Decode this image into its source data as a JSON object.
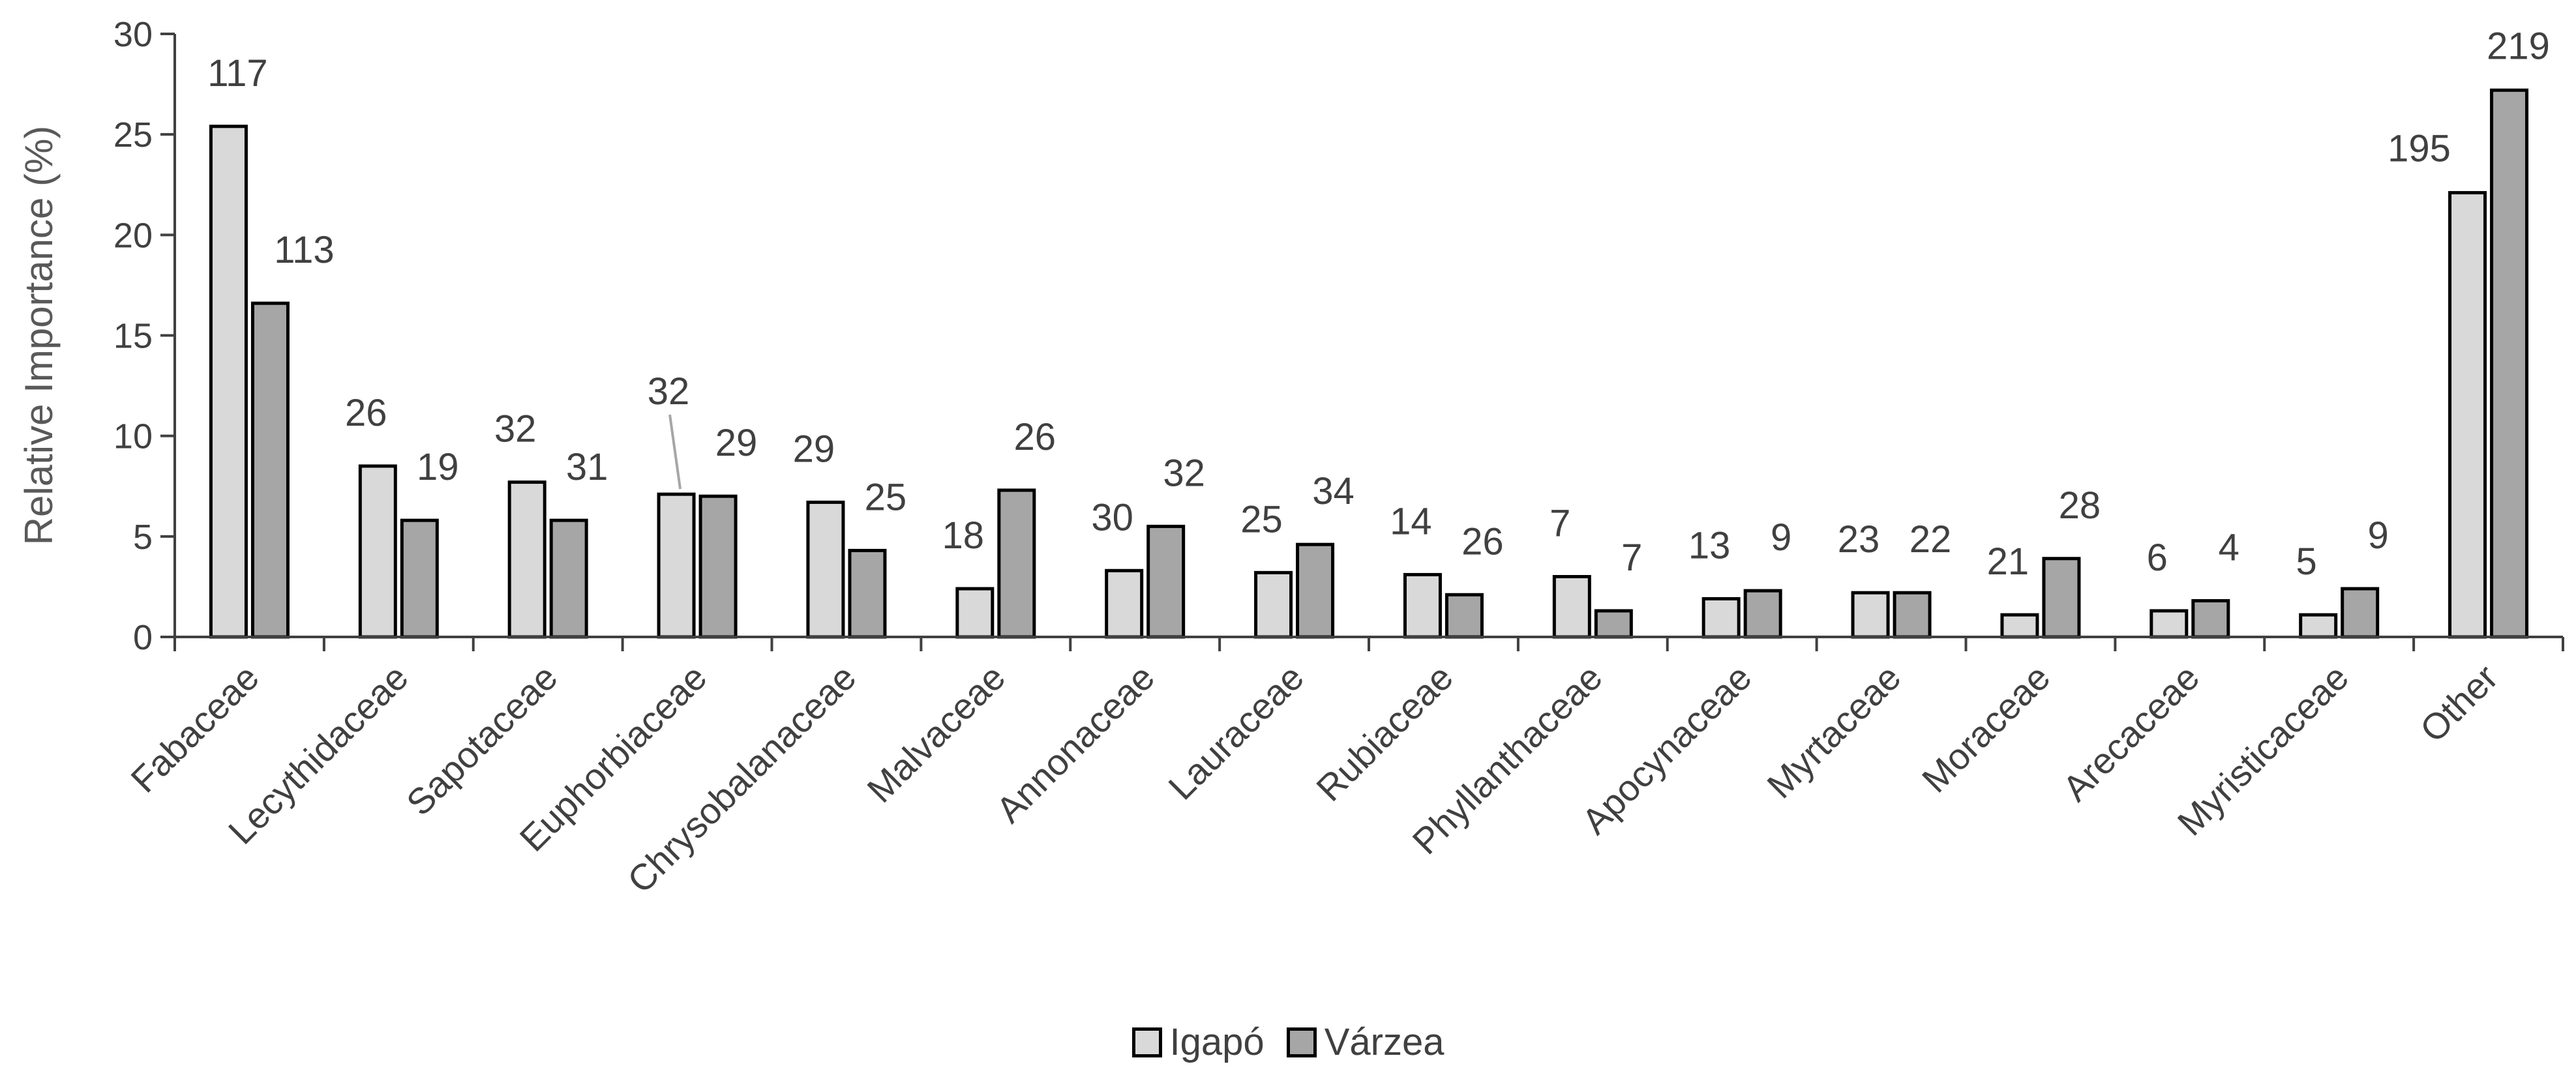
{
  "chart_data": {
    "type": "bar",
    "title": "",
    "xlabel": "",
    "ylabel": "Relative Importance (%)",
    "ylim": [
      0,
      30
    ],
    "yticks": [
      0,
      5,
      10,
      15,
      20,
      25,
      30
    ],
    "grid": false,
    "legend_position": "bottom-center",
    "categories": [
      "Fabaceae",
      "Lecythidaceae",
      "Sapotaceae",
      "Euphorbiaceae",
      "Chrysobalanaceae",
      "Malvaceae",
      "Annonaceae",
      "Lauraceae",
      "Rubiaceae",
      "Phyllanthaceae",
      "Apocynaceae",
      "Myrtaceae",
      "Moraceae",
      "Arecaceae",
      "Myristicaceae",
      "Other"
    ],
    "series": [
      {
        "name": "Igapó",
        "color": "#d9d9d9",
        "values": [
          25.4,
          8.5,
          7.7,
          7.1,
          6.7,
          2.4,
          3.3,
          3.2,
          3.1,
          3.0,
          1.9,
          2.2,
          1.1,
          1.3,
          1.1,
          22.1
        ],
        "labels": [
          "117",
          "26",
          "32",
          "32",
          "29",
          "18",
          "30",
          "25",
          "14",
          "7",
          "13",
          "23",
          "21",
          "6",
          "5",
          "195"
        ]
      },
      {
        "name": "Várzea",
        "color": "#a6a6a6",
        "values": [
          16.6,
          5.8,
          5.8,
          7.0,
          4.3,
          7.3,
          5.5,
          4.6,
          2.1,
          1.3,
          2.3,
          2.2,
          3.9,
          1.8,
          2.4,
          27.2
        ],
        "labels": [
          "113",
          "19",
          "31",
          "29",
          "25",
          "26",
          "32",
          "34",
          "26",
          "7",
          "9",
          "22",
          "28",
          "4",
          "9",
          "219"
        ]
      }
    ]
  }
}
